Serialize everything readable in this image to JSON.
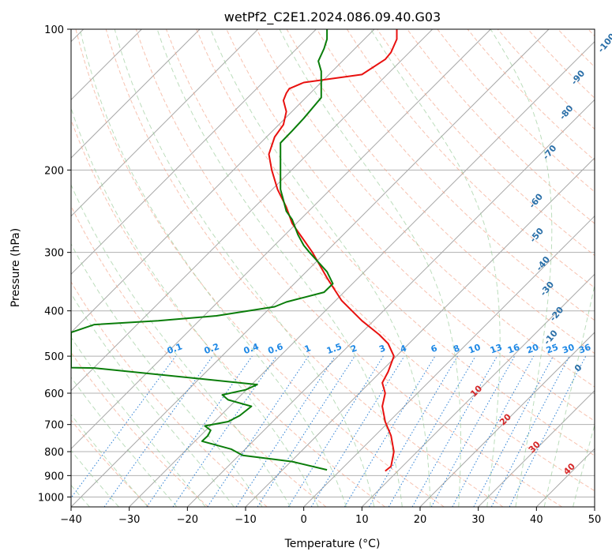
{
  "chart_data": {
    "type": "line",
    "title": "wetPf2_C2E1.2024.086.09.40.G03",
    "xlabel": "Temperature (°C)",
    "ylabel": "Pressure (hPa)",
    "xlim": [
      -40,
      50
    ],
    "ylim": [
      1050,
      100
    ],
    "y_scale": "log",
    "grid": true,
    "x_ticks": [
      -40,
      -30,
      -20,
      -10,
      0,
      10,
      20,
      30,
      40,
      50
    ],
    "y_ticks": [
      100,
      200,
      300,
      400,
      500,
      600,
      700,
      800,
      900,
      1000
    ],
    "series": [
      {
        "color": "#e8110f",
        "points": [
          [
            14.0,
            880
          ],
          [
            15.0,
            860
          ],
          [
            15.5,
            800
          ],
          [
            15.0,
            740
          ],
          [
            14.0,
            690
          ],
          [
            13.5,
            640
          ],
          [
            14.0,
            600
          ],
          [
            13.5,
            570
          ],
          [
            14.5,
            540
          ],
          [
            15.5,
            500
          ],
          [
            14.5,
            470
          ],
          [
            13.0,
            450
          ],
          [
            10.0,
            420
          ],
          [
            6.5,
            380
          ],
          [
            4.0,
            340
          ],
          [
            1.5,
            300
          ],
          [
            -2.0,
            260
          ],
          [
            -3.0,
            240
          ],
          [
            -4.5,
            220
          ],
          [
            -5.5,
            200
          ],
          [
            -6.0,
            185
          ],
          [
            -5.0,
            170
          ],
          [
            -3.5,
            160
          ],
          [
            -3.0,
            150
          ],
          [
            -3.5,
            142
          ],
          [
            -3.0,
            137
          ],
          [
            -2.5,
            134
          ],
          [
            0.0,
            130
          ],
          [
            10.0,
            125
          ],
          [
            14.0,
            116
          ],
          [
            15.0,
            112
          ],
          [
            16.0,
            105
          ],
          [
            16.0,
            100
          ]
        ]
      },
      {
        "color": "#0a7d0a",
        "points": [
          [
            4.0,
            875
          ],
          [
            -2.0,
            840
          ],
          [
            -10.5,
            815
          ],
          [
            -12.5,
            790
          ],
          [
            -17.5,
            760
          ],
          [
            -16.5,
            740
          ],
          [
            -16.0,
            720
          ],
          [
            -17.0,
            705
          ],
          [
            -13.0,
            690
          ],
          [
            -11.0,
            670
          ],
          [
            -9.0,
            640
          ],
          [
            -13.0,
            620
          ],
          [
            -14.0,
            605
          ],
          [
            -10.0,
            590
          ],
          [
            -8.0,
            575
          ],
          [
            -36.0,
            530
          ],
          [
            -40.0,
            529
          ],
          [
            -40.0,
            445
          ],
          [
            -36.0,
            428
          ],
          [
            -25.0,
            420
          ],
          [
            -15.0,
            410
          ],
          [
            -5.0,
            392
          ],
          [
            -3.0,
            383
          ],
          [
            3.5,
            365
          ],
          [
            5.0,
            350
          ],
          [
            4.0,
            330
          ],
          [
            1.0,
            300
          ],
          [
            0.0,
            290
          ],
          [
            -1.0,
            275
          ],
          [
            -2.0,
            255
          ],
          [
            -3.0,
            245
          ],
          [
            -3.5,
            232
          ],
          [
            -4.0,
            220
          ],
          [
            -4.0,
            210
          ],
          [
            -4.0,
            200
          ],
          [
            -4.0,
            185
          ],
          [
            -4.0,
            175
          ],
          [
            -2.0,
            165
          ],
          [
            0.0,
            155
          ],
          [
            3.0,
            140
          ],
          [
            3.0,
            130
          ],
          [
            3.0,
            123
          ],
          [
            2.5,
            117
          ],
          [
            3.5,
            110
          ],
          [
            4.0,
            105
          ],
          [
            4.0,
            100
          ]
        ]
      }
    ],
    "mixing_ratio_labels": [
      "0.1",
      "0.2",
      "0.4",
      "0.6",
      "1",
      "1.5",
      "2",
      "3",
      "4",
      "6",
      "8",
      "10",
      "13",
      "16",
      "20",
      "25",
      "30",
      "36"
    ],
    "mixing_ratio_values": [
      0.1,
      0.2,
      0.4,
      0.6,
      1,
      1.5,
      2,
      3,
      4,
      6,
      8,
      10,
      13,
      16,
      20,
      25,
      30,
      36
    ],
    "moist_adiabat_labels": [
      "-100",
      "-90",
      "-80",
      "-70",
      "-60",
      "-50",
      "-40",
      "-30",
      "-20",
      "-10",
      "0"
    ],
    "dry_adiabat_labels": [
      "10",
      "20",
      "30",
      "40"
    ]
  }
}
